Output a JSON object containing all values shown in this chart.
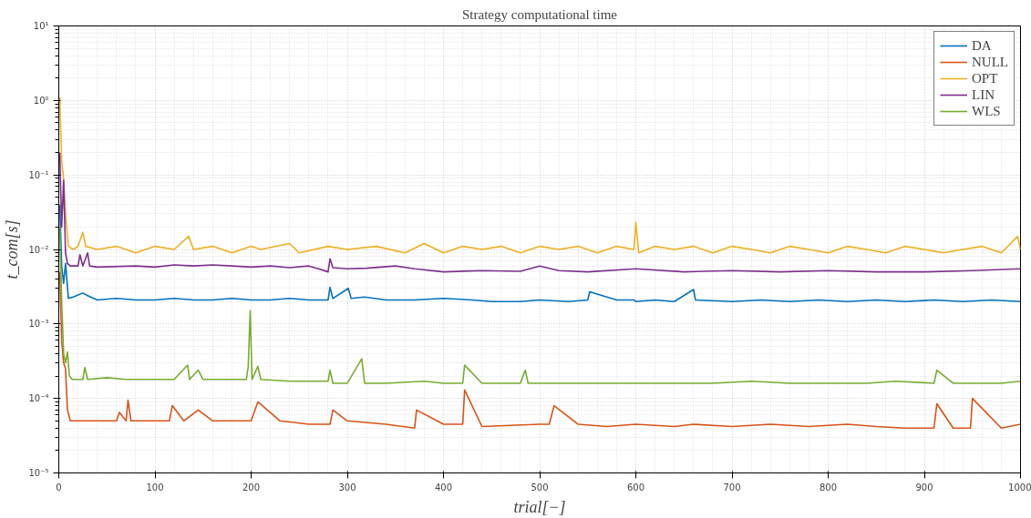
{
  "chart_data": {
    "type": "line",
    "title": "Strategy computational time",
    "xlabel": "trial[−]",
    "ylabel": "t_com[s]",
    "log": "y",
    "grid": true,
    "legend": "top right",
    "line_style": "solid",
    "marker": "none",
    "xlim": [
      0,
      1000
    ],
    "xticks": [
      0,
      100,
      200,
      300,
      400,
      500,
      600,
      700,
      800,
      900,
      1000
    ],
    "ylim": [
      1e-05,
      10
    ],
    "yticks": [
      {
        "value": 1e-05,
        "label": "10⁻⁵"
      },
      {
        "value": 0.0001,
        "label": "10⁻⁴"
      },
      {
        "value": 0.001,
        "label": "10⁻³"
      },
      {
        "value": 0.01,
        "label": "10⁻²"
      },
      {
        "value": 0.1,
        "label": "10⁻¹"
      },
      {
        "value": 1,
        "label": "10⁰"
      },
      {
        "value": 10,
        "label": "10¹"
      }
    ],
    "series": [
      {
        "name": "DA",
        "color": "#0072bd",
        "x": [
          1,
          3,
          5,
          7,
          10,
          15,
          25,
          30,
          40,
          60,
          80,
          100,
          120,
          140,
          160,
          180,
          200,
          220,
          240,
          260,
          280,
          282,
          285,
          301,
          304,
          318,
          340,
          370,
          400,
          430,
          450,
          480,
          500,
          530,
          550,
          552,
          580,
          598,
          600,
          620,
          640,
          660,
          662,
          700,
          730,
          760,
          790,
          820,
          850,
          880,
          910,
          940,
          970,
          1000
        ],
        "values": [
          0.04,
          0.006,
          0.0035,
          0.0065,
          0.0022,
          0.0023,
          0.0026,
          0.0024,
          0.0021,
          0.0022,
          0.0021,
          0.0021,
          0.0022,
          0.0021,
          0.0021,
          0.0022,
          0.0021,
          0.0021,
          0.0022,
          0.0021,
          0.0021,
          0.0031,
          0.0022,
          0.003,
          0.0022,
          0.0023,
          0.0021,
          0.0021,
          0.0022,
          0.0021,
          0.002,
          0.002,
          0.0021,
          0.002,
          0.0021,
          0.0027,
          0.0021,
          0.0021,
          0.002,
          0.0021,
          0.002,
          0.0029,
          0.0021,
          0.002,
          0.0021,
          0.002,
          0.0021,
          0.002,
          0.0021,
          0.002,
          0.0021,
          0.002,
          0.0021,
          0.002
        ]
      },
      {
        "name": "NULL",
        "color": "#d95319",
        "x": [
          1,
          3,
          5,
          7,
          9,
          12,
          20,
          40,
          60,
          63,
          70,
          72,
          75,
          100,
          115,
          118,
          130,
          145,
          160,
          200,
          207,
          230,
          260,
          282,
          285,
          300,
          340,
          370,
          372,
          400,
          420,
          422,
          440,
          500,
          510,
          515,
          540,
          570,
          600,
          640,
          660,
          700,
          740,
          780,
          820,
          850,
          880,
          910,
          913,
          930,
          948,
          950,
          980,
          1000
        ],
        "values": [
          0.005,
          0.0006,
          0.0003,
          0.00025,
          7e-05,
          5e-05,
          5e-05,
          5e-05,
          5e-05,
          6.5e-05,
          5e-05,
          9.5e-05,
          5e-05,
          5e-05,
          5e-05,
          8e-05,
          5e-05,
          7e-05,
          5e-05,
          5e-05,
          9e-05,
          5e-05,
          4.5e-05,
          4.5e-05,
          7e-05,
          5e-05,
          4.5e-05,
          4e-05,
          7e-05,
          4.5e-05,
          4.5e-05,
          0.00013,
          4.2e-05,
          4.5e-05,
          4.5e-05,
          8e-05,
          4.5e-05,
          4.2e-05,
          4.5e-05,
          4.2e-05,
          4.5e-05,
          4.2e-05,
          4.5e-05,
          4.2e-05,
          4.5e-05,
          4.2e-05,
          4e-05,
          4e-05,
          8.5e-05,
          4e-05,
          4e-05,
          0.0001,
          4e-05,
          4.5e-05
        ]
      },
      {
        "name": "OPT",
        "color": "#edb120",
        "x": [
          1,
          3,
          5,
          7,
          10,
          15,
          20,
          25,
          28,
          40,
          60,
          80,
          100,
          120,
          135,
          140,
          160,
          180,
          200,
          210,
          240,
          250,
          280,
          300,
          330,
          360,
          380,
          400,
          420,
          440,
          460,
          480,
          500,
          520,
          540,
          560,
          580,
          598,
          600,
          603,
          620,
          640,
          660,
          680,
          700,
          720,
          740,
          760,
          780,
          800,
          820,
          840,
          860,
          880,
          900,
          920,
          940,
          960,
          980,
          997,
          1000
        ],
        "values": [
          1.1,
          0.15,
          0.09,
          0.03,
          0.011,
          0.01,
          0.011,
          0.017,
          0.011,
          0.01,
          0.011,
          0.009,
          0.011,
          0.01,
          0.015,
          0.01,
          0.011,
          0.009,
          0.011,
          0.01,
          0.012,
          0.009,
          0.011,
          0.01,
          0.011,
          0.009,
          0.012,
          0.009,
          0.011,
          0.01,
          0.011,
          0.009,
          0.011,
          0.01,
          0.011,
          0.009,
          0.011,
          0.01,
          0.023,
          0.009,
          0.011,
          0.01,
          0.011,
          0.009,
          0.011,
          0.01,
          0.009,
          0.011,
          0.01,
          0.009,
          0.011,
          0.01,
          0.009,
          0.011,
          0.01,
          0.009,
          0.01,
          0.011,
          0.009,
          0.015,
          0.01
        ]
      },
      {
        "name": "LIN",
        "color": "#7e2f8e",
        "x": [
          1,
          3,
          5,
          7,
          9,
          12,
          20,
          22,
          25,
          30,
          32,
          40,
          80,
          100,
          120,
          140,
          160,
          180,
          200,
          220,
          240,
          260,
          270,
          280,
          282,
          285,
          300,
          320,
          350,
          370,
          400,
          440,
          480,
          500,
          520,
          550,
          600,
          650,
          700,
          750,
          800,
          850,
          900,
          950,
          1000
        ],
        "values": [
          0.2,
          0.02,
          0.085,
          0.009,
          0.0065,
          0.006,
          0.006,
          0.0085,
          0.006,
          0.009,
          0.006,
          0.0058,
          0.006,
          0.0058,
          0.0062,
          0.006,
          0.0062,
          0.006,
          0.0058,
          0.006,
          0.0057,
          0.006,
          0.0055,
          0.005,
          0.0075,
          0.0057,
          0.0055,
          0.0056,
          0.006,
          0.0055,
          0.005,
          0.0052,
          0.0051,
          0.006,
          0.0052,
          0.005,
          0.0055,
          0.005,
          0.0052,
          0.005,
          0.0052,
          0.005,
          0.005,
          0.0052,
          0.0055
        ]
      },
      {
        "name": "WLS",
        "color": "#77ac30",
        "x": [
          1,
          3,
          5,
          7,
          9,
          11,
          14,
          20,
          25,
          27,
          30,
          50,
          70,
          100,
          120,
          134,
          136,
          145,
          150,
          180,
          195,
          197,
          199,
          201,
          207,
          210,
          240,
          280,
          282,
          285,
          300,
          315,
          318,
          340,
          380,
          400,
          420,
          422,
          440,
          480,
          485,
          488,
          520,
          560,
          600,
          640,
          680,
          720,
          760,
          800,
          840,
          870,
          910,
          913,
          930,
          950,
          980,
          1000
        ],
        "values": [
          0.02,
          0.002,
          0.0004,
          0.0003,
          0.00042,
          0.0002,
          0.00018,
          0.00018,
          0.00018,
          0.00026,
          0.00018,
          0.00019,
          0.00018,
          0.00018,
          0.00018,
          0.00028,
          0.00018,
          0.00024,
          0.00018,
          0.00018,
          0.00018,
          0.00027,
          0.0015,
          0.00018,
          0.00027,
          0.00018,
          0.00017,
          0.00017,
          0.00024,
          0.00016,
          0.00016,
          0.00034,
          0.00016,
          0.00016,
          0.00017,
          0.00016,
          0.00016,
          0.00028,
          0.00016,
          0.00016,
          0.00024,
          0.00016,
          0.00016,
          0.00016,
          0.00016,
          0.00016,
          0.00016,
          0.00017,
          0.00016,
          0.00016,
          0.00016,
          0.00017,
          0.00016,
          0.00024,
          0.00016,
          0.00016,
          0.00016,
          0.00017
        ]
      }
    ]
  }
}
